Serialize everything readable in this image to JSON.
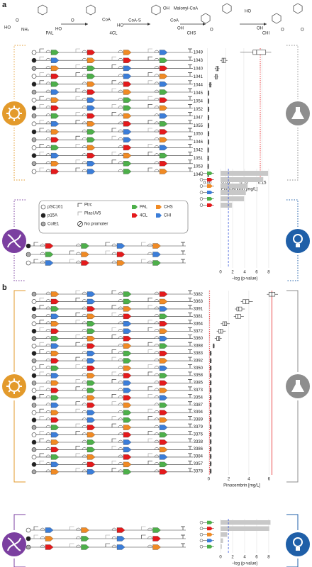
{
  "panel_labels": [
    "a",
    "b"
  ],
  "pathway": {
    "enzymes": [
      {
        "name": "PAL",
        "color": "#4daf4a"
      },
      {
        "name": "4CL",
        "color": "#e41a1c"
      },
      {
        "name": "CHS",
        "color": "#f08a24"
      },
      {
        "name": "CHI",
        "color": "#3b7dd8"
      }
    ],
    "cofactors": [
      "CoA",
      "CoA-S",
      "Malonyl-CoA",
      "CoA"
    ],
    "atoms": [
      "HO",
      "O",
      "NH₂",
      "HO",
      "O",
      "HO",
      "OH",
      "OH",
      "O",
      "HO",
      "OH",
      "O",
      "O"
    ]
  },
  "legend": [
    "pSC101",
    "p15A",
    "ColE1",
    "Ptrc",
    "PlacUV5",
    "No promoter",
    "PAL",
    "4CL",
    "CHS",
    "CHI"
  ],
  "chart_data": [
    {
      "type": "box",
      "categories": [
        "1049",
        "1043",
        "1040",
        "1041",
        "1044",
        "1045",
        "1054",
        "1052",
        "1047",
        "1055",
        "1050",
        "1046",
        "1042",
        "1051",
        "1053",
        "1048"
      ],
      "boxes": [
        {
          "low": 0.09,
          "q1": 0.125,
          "median": 0.135,
          "q3": 0.16,
          "high": 0.175
        },
        {
          "low": 0.035,
          "q1": 0.04,
          "median": 0.045,
          "q3": 0.05,
          "high": 0.055
        },
        {
          "low": 0.02,
          "q1": 0.024,
          "median": 0.027,
          "q3": 0.03,
          "high": 0.033
        },
        {
          "low": 0.018,
          "q1": 0.021,
          "median": 0.024,
          "q3": 0.027,
          "high": 0.03
        },
        {
          "low": 0.004,
          "q1": 0.006,
          "median": 0.008,
          "q3": 0.01,
          "high": 0.012
        },
        {
          "low": 0.001,
          "q1": 0.002,
          "median": 0.003,
          "q3": 0.004,
          "high": 0.005
        },
        {
          "low": 0.001,
          "q1": 0.002,
          "median": 0.003,
          "q3": 0.004,
          "high": 0.005
        },
        {
          "low": 0.001,
          "q1": 0.002,
          "median": 0.003,
          "q3": 0.004,
          "high": 0.005
        },
        {
          "low": 0.001,
          "q1": 0.002,
          "median": 0.003,
          "q3": 0.004,
          "high": 0.005
        },
        {
          "low": 0.001,
          "q1": 0.002,
          "median": 0.003,
          "q3": 0.004,
          "high": 0.005
        },
        {
          "low": 0.001,
          "q1": 0.002,
          "median": 0.003,
          "q3": 0.004,
          "high": 0.005
        },
        {
          "low": 0.001,
          "q1": 0.002,
          "median": 0.003,
          "q3": 0.004,
          "high": 0.005
        },
        {
          "low": 0.0,
          "q1": 0.001,
          "median": 0.002,
          "q3": 0.003,
          "high": 0.004
        },
        {
          "low": 0.0,
          "q1": 0.001,
          "median": 0.002,
          "q3": 0.003,
          "high": 0.004
        },
        {
          "low": 0.0,
          "q1": 0.001,
          "median": 0.002,
          "q3": 0.003,
          "high": 0.004
        },
        {
          "low": 0.0,
          "q1": 0.001,
          "median": 0.002,
          "q3": 0.003,
          "high": 0.004
        }
      ],
      "xlabel": "Pinocembrin [mg/L]",
      "xlim": [
        -0.005,
        0.18
      ],
      "xticks": [
        {
          "value": 0,
          "label": "0.00"
        },
        {
          "value": 0.05,
          "label": "0.05"
        },
        {
          "value": 0.1,
          "label": "0.10"
        },
        {
          "value": 0.15,
          "label": "0.15"
        }
      ],
      "grid": true,
      "color": "#ffffff",
      "reference_lines": [
        {
          "value": 0.145,
          "color": "#e41a1c",
          "style": "dotted"
        }
      ]
    },
    {
      "type": "hbar",
      "categories": [
        null,
        null,
        null,
        null,
        null,
        null
      ],
      "values": [
        7.9,
        7.1,
        4.5,
        4.2,
        3.9,
        1.9
      ],
      "xlabel": "−log (p-value)",
      "xlim": [
        -0.6,
        8.6
      ],
      "xticks": [
        0,
        2,
        4,
        6,
        8
      ],
      "grid": true,
      "color": "#c8c8c8",
      "reference_lines": [
        {
          "value": 1.3,
          "color": "#3b5bdb",
          "style": "dashed"
        }
      ]
    },
    {
      "type": "box",
      "categories": [
        "3382",
        "3363",
        "3391",
        "3381",
        "3364",
        "3372",
        "3360",
        "3388",
        "3383",
        "3392",
        "3350",
        "3358",
        "3385",
        "3373",
        "3354",
        "3387",
        "3394",
        "3389",
        "3379",
        "3376",
        "3338",
        "3386",
        "3384",
        "3357",
        "3378"
      ],
      "boxes": [
        {
          "low": 5.8,
          "q1": 6.0,
          "median": 6.3,
          "q3": 6.6,
          "high": 6.9
        },
        {
          "low": 3.2,
          "q1": 3.4,
          "median": 3.7,
          "q3": 4.0,
          "high": 4.4
        },
        {
          "low": 2.6,
          "q1": 2.8,
          "median": 3.0,
          "q3": 3.3,
          "high": 3.6
        },
        {
          "low": 2.5,
          "q1": 2.7,
          "median": 2.9,
          "q3": 3.2,
          "high": 3.5
        },
        {
          "low": 1.2,
          "q1": 1.4,
          "median": 1.6,
          "q3": 1.8,
          "high": 2.1
        },
        {
          "low": 0.8,
          "q1": 1.0,
          "median": 1.2,
          "q3": 1.4,
          "high": 1.7
        },
        {
          "low": 0.6,
          "q1": 0.8,
          "median": 1.0,
          "q3": 1.1,
          "high": 1.3
        },
        {
          "low": 0.4,
          "q1": 0.45,
          "median": 0.5,
          "q3": 0.55,
          "high": 0.6
        },
        {
          "low": 0.1,
          "q1": 0.15,
          "median": 0.2,
          "q3": 0.25,
          "high": 0.3
        },
        {
          "low": 0.1,
          "q1": 0.15,
          "median": 0.2,
          "q3": 0.25,
          "high": 0.3
        },
        {
          "low": 0.1,
          "q1": 0.15,
          "median": 0.2,
          "q3": 0.25,
          "high": 0.3
        },
        {
          "low": 0.1,
          "q1": 0.15,
          "median": 0.2,
          "q3": 0.25,
          "high": 0.3
        },
        {
          "low": 0.1,
          "q1": 0.15,
          "median": 0.2,
          "q3": 0.25,
          "high": 0.3
        },
        {
          "low": 0.1,
          "q1": 0.15,
          "median": 0.2,
          "q3": 0.25,
          "high": 0.3
        },
        {
          "low": 0.1,
          "q1": 0.15,
          "median": 0.2,
          "q3": 0.25,
          "high": 0.3
        },
        {
          "low": 0.1,
          "q1": 0.15,
          "median": 0.2,
          "q3": 0.25,
          "high": 0.3
        },
        {
          "low": 0.1,
          "q1": 0.15,
          "median": 0.2,
          "q3": 0.25,
          "high": 0.3
        },
        {
          "low": 0.1,
          "q1": 0.15,
          "median": 0.2,
          "q3": 0.25,
          "high": 0.3
        },
        {
          "low": 0.1,
          "q1": 0.15,
          "median": 0.2,
          "q3": 0.25,
          "high": 0.3
        },
        {
          "low": 0.1,
          "q1": 0.15,
          "median": 0.2,
          "q3": 0.25,
          "high": 0.3
        },
        {
          "low": 0.1,
          "q1": 0.15,
          "median": 0.2,
          "q3": 0.25,
          "high": 0.3
        },
        {
          "low": 0.1,
          "q1": 0.15,
          "median": 0.2,
          "q3": 0.25,
          "high": 0.3
        },
        {
          "low": 0.1,
          "q1": 0.15,
          "median": 0.2,
          "q3": 0.25,
          "high": 0.3
        },
        {
          "low": 0.1,
          "q1": 0.15,
          "median": 0.2,
          "q3": 0.25,
          "high": 0.3
        },
        {
          "low": 0.1,
          "q1": 0.15,
          "median": 0.2,
          "q3": 0.25,
          "high": 0.3
        }
      ],
      "xlabel": "Pinocembrin [mg/L]",
      "xlim": [
        -0.3,
        6.9
      ],
      "xticks": [
        0,
        2,
        4,
        6
      ],
      "grid": true,
      "color": "#ffffff",
      "reference_lines": [
        {
          "value": 6.3,
          "color": "#e41a1c",
          "style": "solid"
        },
        {
          "value": 0.1,
          "color": "#e41a1c",
          "style": "dotted"
        }
      ]
    },
    {
      "type": "hbar",
      "categories": [
        null,
        null,
        null,
        null,
        null
      ],
      "values": [
        8.3,
        8.1,
        1.1,
        0.4,
        0.2
      ],
      "xlabel": "−log (p-value)",
      "xlim": [
        -0.6,
        8.6
      ],
      "xticks": [
        0,
        2,
        4,
        6,
        8
      ],
      "grid": true,
      "color": "#c8c8c8",
      "reference_lines": [
        {
          "value": 1.3,
          "color": "#3b5bdb",
          "style": "dashed"
        }
      ]
    }
  ]
}
